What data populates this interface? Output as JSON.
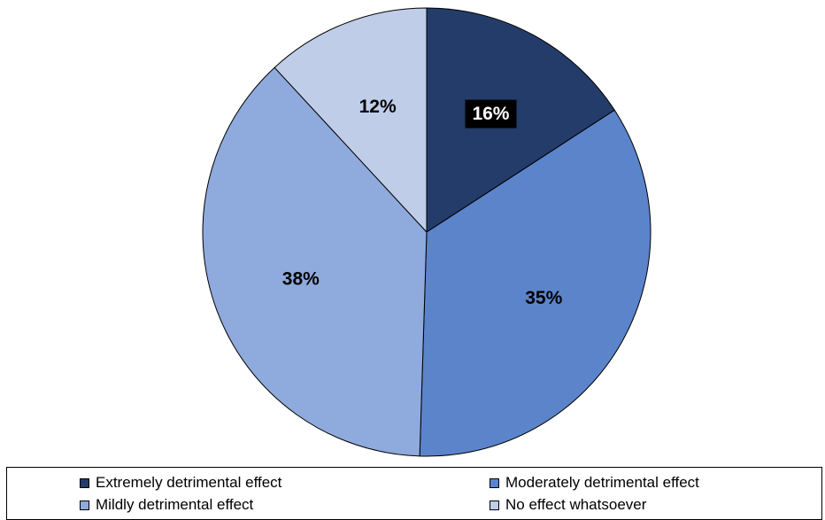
{
  "chart_data": {
    "type": "pie",
    "categories": [
      "Extremely detrimental effect",
      "Moderately detrimental effect",
      "Mildly detrimental effect",
      "No effect whatsoever"
    ],
    "values": [
      16,
      35,
      38,
      12
    ],
    "labels": [
      "16%",
      "35%",
      "38%",
      "12%"
    ],
    "colors": [
      "#243c6a",
      "#5b84cb",
      "#8faadc",
      "#bfcde9"
    ],
    "start_angle_deg": 0,
    "direction": "clockwise",
    "legend_position": "bottom"
  }
}
